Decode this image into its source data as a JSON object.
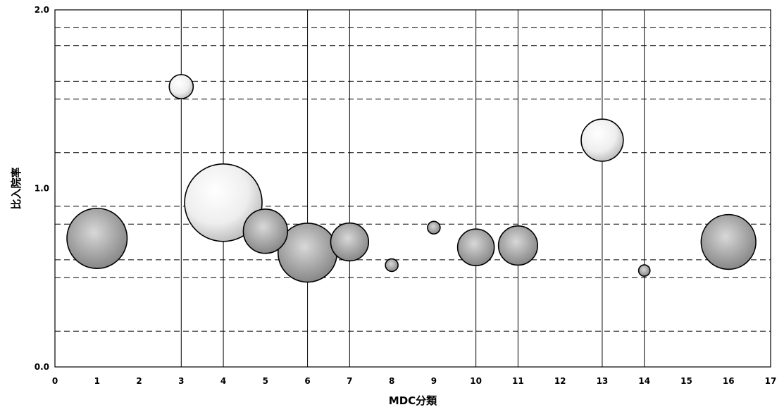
{
  "chart_data": {
    "type": "bubble",
    "title": "",
    "xlabel": "MDC分類",
    "ylabel": "比入院率",
    "xlim": [
      0,
      17
    ],
    "ylim": [
      0.0,
      2.0
    ],
    "x_ticks": [
      0,
      1,
      2,
      3,
      4,
      5,
      6,
      7,
      8,
      9,
      10,
      11,
      12,
      13,
      14,
      15,
      16,
      17
    ],
    "y_ticks": [
      0.0,
      1.0,
      2.0
    ],
    "y_tick_labels": [
      "0.0",
      "1.0",
      "2.0"
    ],
    "grid": {
      "horizontal_dashed": [
        0.2,
        0.5,
        0.6,
        0.8,
        0.9,
        1.2,
        1.5,
        1.6,
        1.8,
        1.9
      ],
      "vertical_solid": [
        3,
        4,
        6,
        7,
        10,
        11,
        13,
        14
      ]
    },
    "legend": "none",
    "colors": {
      "light_bubble": "#f2f2f2",
      "dark_bubble": "#9a9a9a",
      "dark_bubble_highlight": "#c8c8c8",
      "outline": "#000000"
    },
    "points": [
      {
        "x": 1,
        "y": 0.72,
        "size": 1.43,
        "shade": "dark"
      },
      {
        "x": 3,
        "y": 1.57,
        "size": 0.57,
        "shade": "light"
      },
      {
        "x": 4,
        "y": 0.92,
        "size": 1.84,
        "shade": "light"
      },
      {
        "x": 5,
        "y": 0.76,
        "size": 1.05,
        "shade": "dark"
      },
      {
        "x": 6,
        "y": 0.64,
        "size": 1.4,
        "shade": "dark"
      },
      {
        "x": 7,
        "y": 0.7,
        "size": 0.9,
        "shade": "dark"
      },
      {
        "x": 8,
        "y": 0.57,
        "size": 0.3,
        "shade": "dark"
      },
      {
        "x": 9,
        "y": 0.78,
        "size": 0.3,
        "shade": "dark"
      },
      {
        "x": 10,
        "y": 0.67,
        "size": 0.87,
        "shade": "dark"
      },
      {
        "x": 11,
        "y": 0.68,
        "size": 0.93,
        "shade": "dark"
      },
      {
        "x": 13,
        "y": 1.27,
        "size": 1.0,
        "shade": "light"
      },
      {
        "x": 14,
        "y": 0.54,
        "size": 0.27,
        "shade": "dark"
      },
      {
        "x": 16,
        "y": 0.7,
        "size": 1.3,
        "shade": "dark"
      }
    ]
  }
}
